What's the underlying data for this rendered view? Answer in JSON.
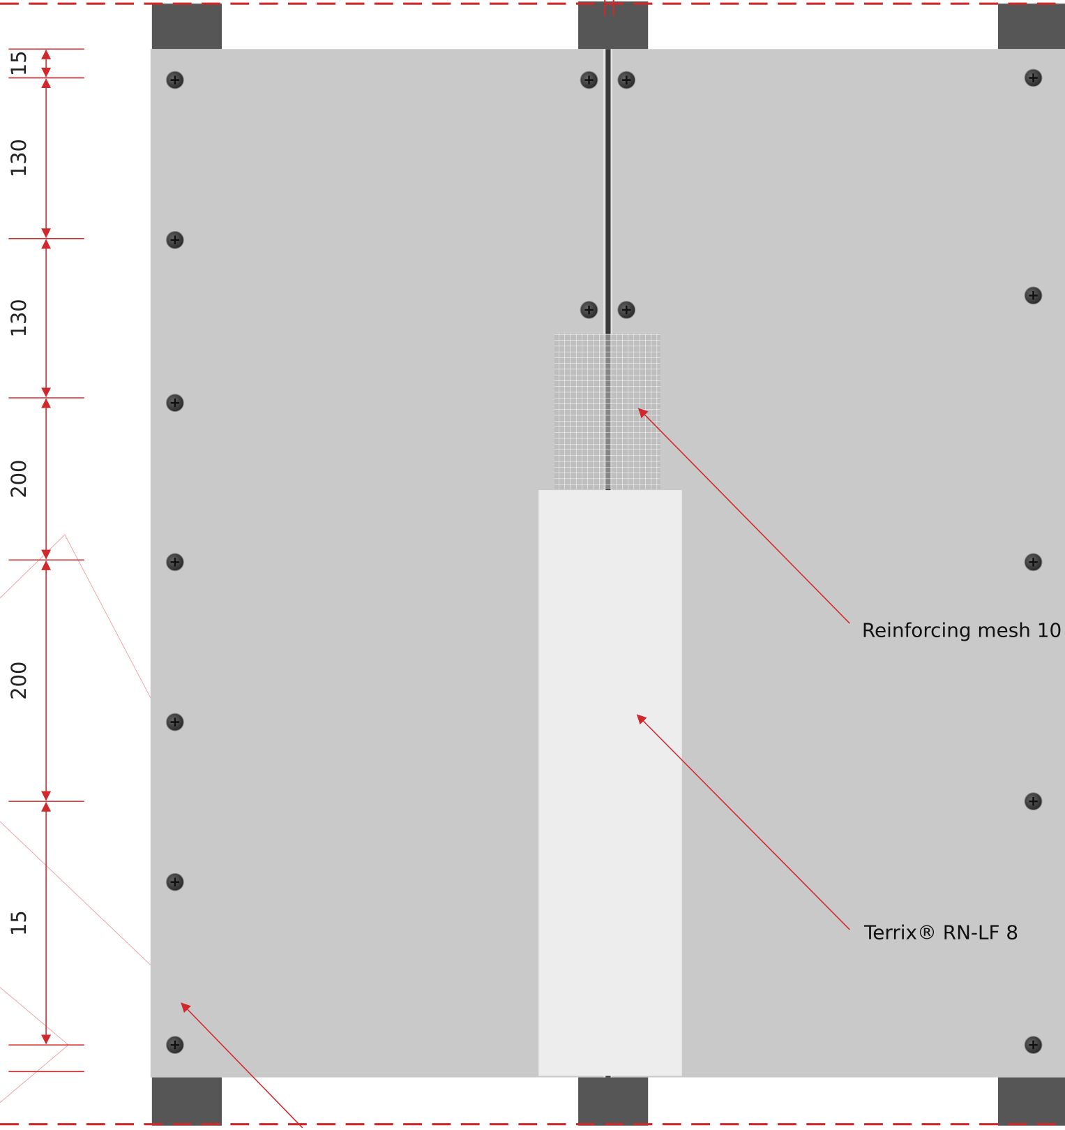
{
  "dimensions": [
    15,
    130,
    130,
    200,
    200,
    15
  ],
  "labels": {
    "mesh": "Reinforcing mesh 10",
    "terrix": "Terrix® RN-LF 8"
  }
}
